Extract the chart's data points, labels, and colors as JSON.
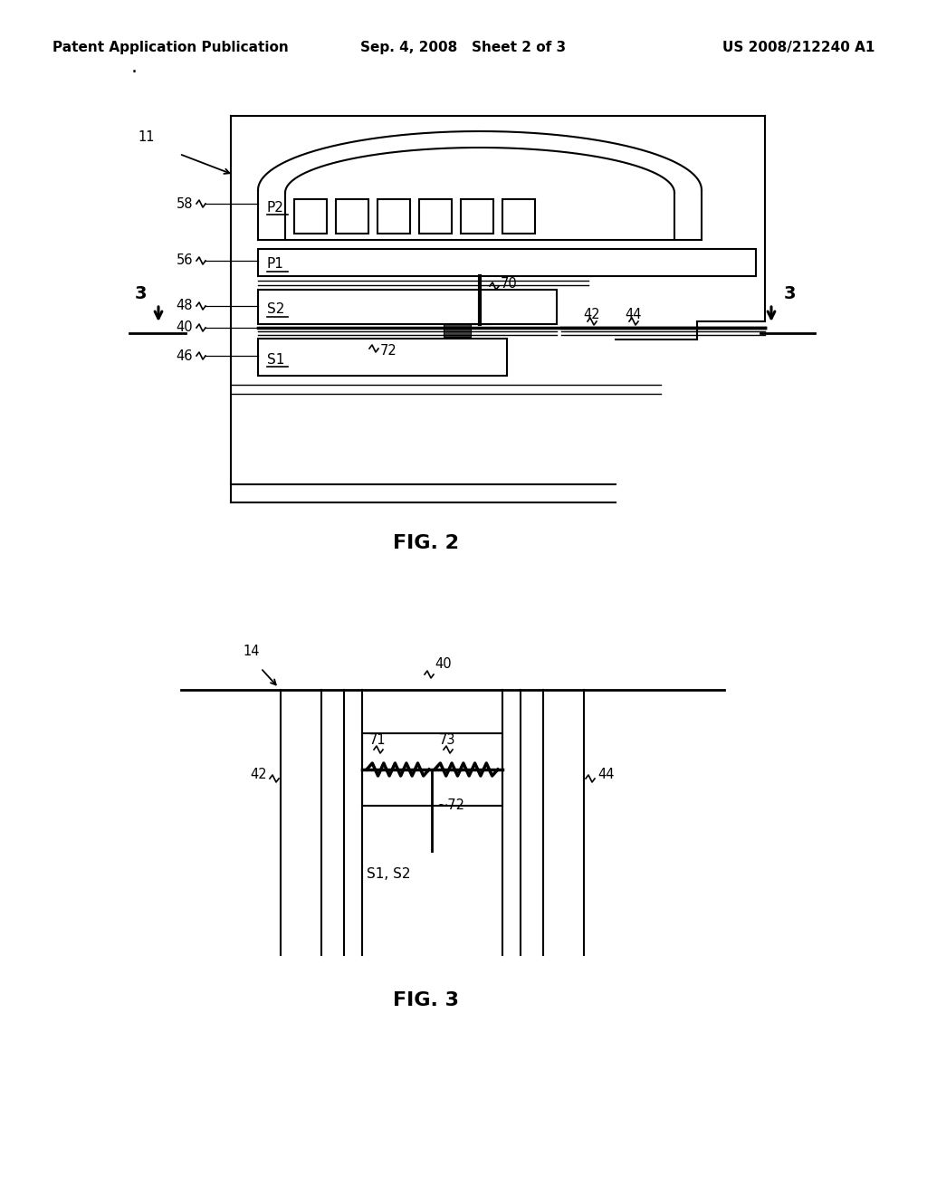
{
  "background_color": "#ffffff",
  "header_left": "Patent Application Publication",
  "header_center": "Sep. 4, 2008   Sheet 2 of 3",
  "header_right": "US 2008/212240 A1",
  "header_fontsize": 11,
  "fig2_label": "FIG. 2",
  "fig3_label": "FIG. 3",
  "fig_label_fontsize": 16
}
